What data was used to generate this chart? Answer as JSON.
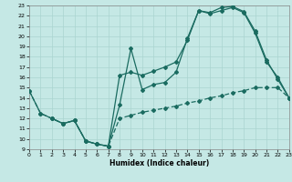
{
  "xlabel": "Humidex (Indice chaleur)",
  "xlim": [
    0,
    23
  ],
  "ylim": [
    9,
    23
  ],
  "xticks": [
    0,
    1,
    2,
    3,
    4,
    5,
    6,
    7,
    8,
    9,
    10,
    11,
    12,
    13,
    14,
    15,
    16,
    17,
    18,
    19,
    20,
    21,
    22,
    23
  ],
  "yticks": [
    9,
    10,
    11,
    12,
    13,
    14,
    15,
    16,
    17,
    18,
    19,
    20,
    21,
    22,
    23
  ],
  "bg_color": "#c5e8e5",
  "grid_color": "#aad4d0",
  "line_color": "#1a6b60",
  "line1_x": [
    0,
    1,
    2,
    3,
    4,
    5,
    6,
    7,
    8,
    9,
    10,
    11,
    12,
    13,
    14,
    15,
    16,
    17,
    18,
    19,
    20,
    21,
    22,
    23
  ],
  "line1_y": [
    14.7,
    12.5,
    12.0,
    11.5,
    11.8,
    9.8,
    9.5,
    9.3,
    13.3,
    18.8,
    14.8,
    15.3,
    15.5,
    16.5,
    19.8,
    22.5,
    22.2,
    22.5,
    22.8,
    22.3,
    20.3,
    17.5,
    16.0,
    14.0
  ],
  "line2_x": [
    2,
    3,
    4,
    5,
    6,
    7,
    8,
    9,
    10,
    11,
    12,
    13,
    14,
    15,
    16,
    17,
    18,
    19,
    20,
    21,
    22,
    23
  ],
  "line2_y": [
    12.0,
    11.5,
    11.8,
    9.8,
    9.5,
    9.3,
    16.2,
    16.5,
    16.2,
    16.6,
    17.0,
    17.5,
    19.6,
    22.5,
    22.3,
    22.8,
    22.9,
    22.4,
    20.5,
    17.7,
    15.8,
    14.0
  ],
  "line3_x": [
    0,
    1,
    2,
    3,
    4,
    5,
    6,
    7,
    8,
    9,
    10,
    11,
    12,
    13,
    14,
    15,
    16,
    17,
    18,
    19,
    20,
    21,
    22,
    23
  ],
  "line3_y": [
    14.7,
    12.5,
    12.0,
    11.5,
    11.8,
    9.8,
    9.5,
    9.3,
    12.0,
    12.3,
    12.6,
    12.8,
    13.0,
    13.2,
    13.5,
    13.7,
    14.0,
    14.2,
    14.5,
    14.7,
    15.0,
    15.0,
    15.0,
    14.0
  ]
}
